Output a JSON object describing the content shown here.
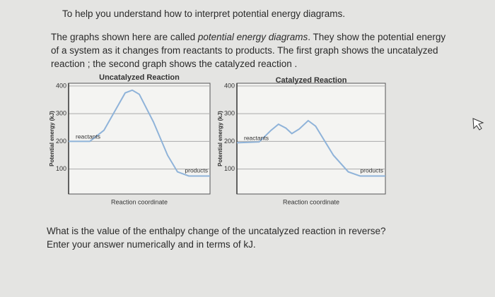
{
  "heading": "To help you understand how to interpret potential energy diagrams.",
  "paragraph": [
    "The graphs shown here are called ",
    "potential energy diagrams",
    ". They show the potential energy of a system as it changes from reactants to products. The first graph shows the uncatalyzed reaction ; the second graph shows the catalyzed reaction ."
  ],
  "question": [
    "What is the value of the enthalpy change of the uncatalyzed reaction in reverse?",
    "Enter your answer numerically and in terms of kJ."
  ],
  "chart_data": [
    {
      "type": "line",
      "title": "Uncatalyzed Reaction",
      "x_label": "Reaction coordinate",
      "y_label": "Potential energy (kJ)",
      "annotations": [
        "reactants",
        "products"
      ],
      "x": [
        0,
        1.5,
        2.5,
        3.5,
        4,
        4.5,
        5,
        6,
        7,
        7.7,
        8.5,
        10
      ],
      "values": [
        200,
        200,
        240,
        330,
        375,
        385,
        370,
        270,
        150,
        90,
        75,
        75
      ],
      "color": "#8fb3d9",
      "xlim": [
        0,
        10
      ],
      "ylim": [
        10,
        410
      ],
      "yticks": [
        100,
        200,
        300,
        400
      ],
      "grid": true
    },
    {
      "type": "line",
      "title": "Catalyzed Reaction",
      "x_label": "Reaction coordinate",
      "y_label": "Potential energy (kJ)",
      "annotations": [
        "reactants",
        "products"
      ],
      "x": [
        0,
        1.5,
        2.3,
        2.8,
        3.3,
        3.7,
        4.2,
        4.8,
        5.3,
        6.5,
        7.5,
        8.3,
        10
      ],
      "values": [
        195,
        198,
        240,
        262,
        248,
        228,
        245,
        275,
        255,
        150,
        90,
        75,
        75
      ],
      "color": "#8fb3d9",
      "xlim": [
        0,
        10
      ],
      "ylim": [
        10,
        410
      ],
      "yticks": [
        100,
        200,
        300,
        400
      ],
      "grid": true
    }
  ]
}
